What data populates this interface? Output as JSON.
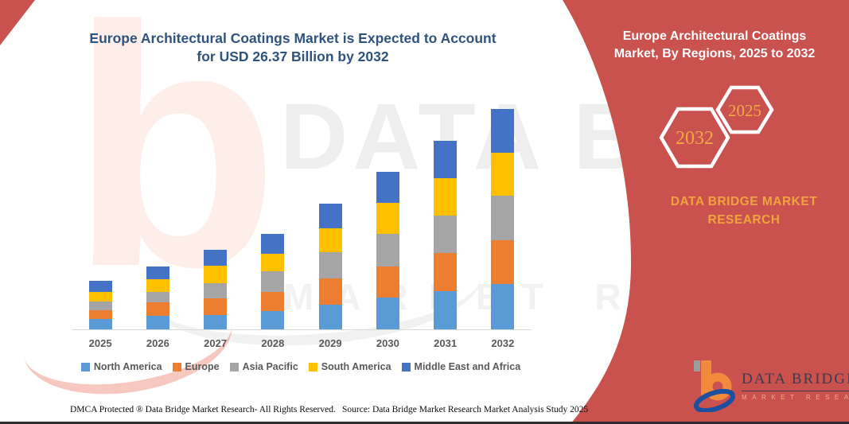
{
  "page": {
    "accent_red": "#C9514E",
    "title_color": "#2E537F",
    "gold": "#F0A43F",
    "axis_label_color": "#595959"
  },
  "header": {
    "title_line1": "Europe Architectural Coatings Market is Expected to Account",
    "title_line2": "for USD 26.37 Billion by 2032"
  },
  "right_panel": {
    "title_line1": "Europe Architectural Coatings",
    "title_line2": "Market, By Regions, 2025 to 2032",
    "hexagon_left_year": "2032",
    "hexagon_right_year": "2025",
    "brand_line1": "DATA BRIDGE MARKET",
    "brand_line2": "RESEARCH"
  },
  "watermark": {
    "line1": "DATA BRIDGE",
    "line2": "MARKET RESEARCH",
    "letter": "b"
  },
  "logo": {
    "name": "DATA BRIDGE",
    "subtitle": "MARKET RESEARCH"
  },
  "footer": {
    "left": "DMCA Protected ® Data Bridge Market Research-  All Rights Reserved.",
    "right": "Source: Data Bridge Market Research  Market Analysis Study 2025"
  },
  "chart_data": {
    "type": "bar",
    "stacked": true,
    "title": "Europe Architectural Coatings Market is Expected to Account for USD 26.37 Billion by 2032",
    "unit": "USD Billion",
    "categories": [
      "2025",
      "2026",
      "2027",
      "2028",
      "2029",
      "2030",
      "2031",
      "2032"
    ],
    "series": [
      {
        "name": "North America",
        "color": "#5B9BD5",
        "values": [
          1.25,
          1.62,
          1.76,
          2.22,
          3.0,
          3.8,
          4.6,
          5.4
        ]
      },
      {
        "name": "Europe",
        "color": "#ED7D31",
        "values": [
          1.05,
          1.62,
          1.97,
          2.29,
          3.1,
          3.7,
          4.5,
          5.3
        ]
      },
      {
        "name": "Asia Pacific",
        "color": "#A5A5A5",
        "values": [
          1.05,
          1.24,
          1.84,
          2.47,
          3.1,
          3.9,
          4.55,
          5.35
        ]
      },
      {
        "name": "South America",
        "color": "#FFC000",
        "values": [
          1.15,
          1.52,
          2.08,
          2.07,
          2.9,
          3.76,
          4.42,
          5.12
        ]
      },
      {
        "name": "Middle East and Africa",
        "color": "#4472C4",
        "values": [
          1.31,
          1.52,
          1.9,
          2.38,
          2.95,
          3.7,
          4.5,
          5.2
        ]
      }
    ],
    "totals": [
      5.81,
      7.52,
      9.55,
      11.43,
      15.05,
      18.86,
      22.57,
      26.37
    ],
    "ylim": [
      0,
      27
    ],
    "gridlines": false,
    "legend_position": "bottom"
  }
}
